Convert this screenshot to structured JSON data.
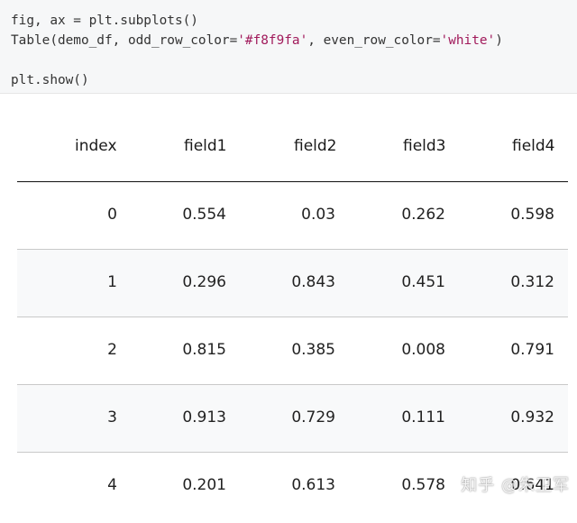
{
  "code": {
    "line1": "fig, ax = plt.subplots()",
    "line2_prefix": "Table(demo_df, odd_row_color=",
    "line2_str1": "'#f8f9fa'",
    "line2_middle": ", even_row_color=",
    "line2_str2": "'white'",
    "line2_suffix": ")",
    "line3": "plt.show()"
  },
  "colors": {
    "odd_row": "#f8f9fa",
    "even_row": "#ffffff",
    "code_string": "#a11a5b"
  },
  "table": {
    "headers": [
      "index",
      "field1",
      "field2",
      "field3",
      "field4"
    ],
    "rows": [
      [
        "0",
        "0.554",
        "0.03",
        "0.262",
        "0.598"
      ],
      [
        "1",
        "0.296",
        "0.843",
        "0.451",
        "0.312"
      ],
      [
        "2",
        "0.815",
        "0.385",
        "0.008",
        "0.791"
      ],
      [
        "3",
        "0.913",
        "0.729",
        "0.111",
        "0.932"
      ],
      [
        "4",
        "0.201",
        "0.613",
        "0.578",
        "0.641"
      ]
    ]
  },
  "watermark": "知乎 @朱卫军"
}
